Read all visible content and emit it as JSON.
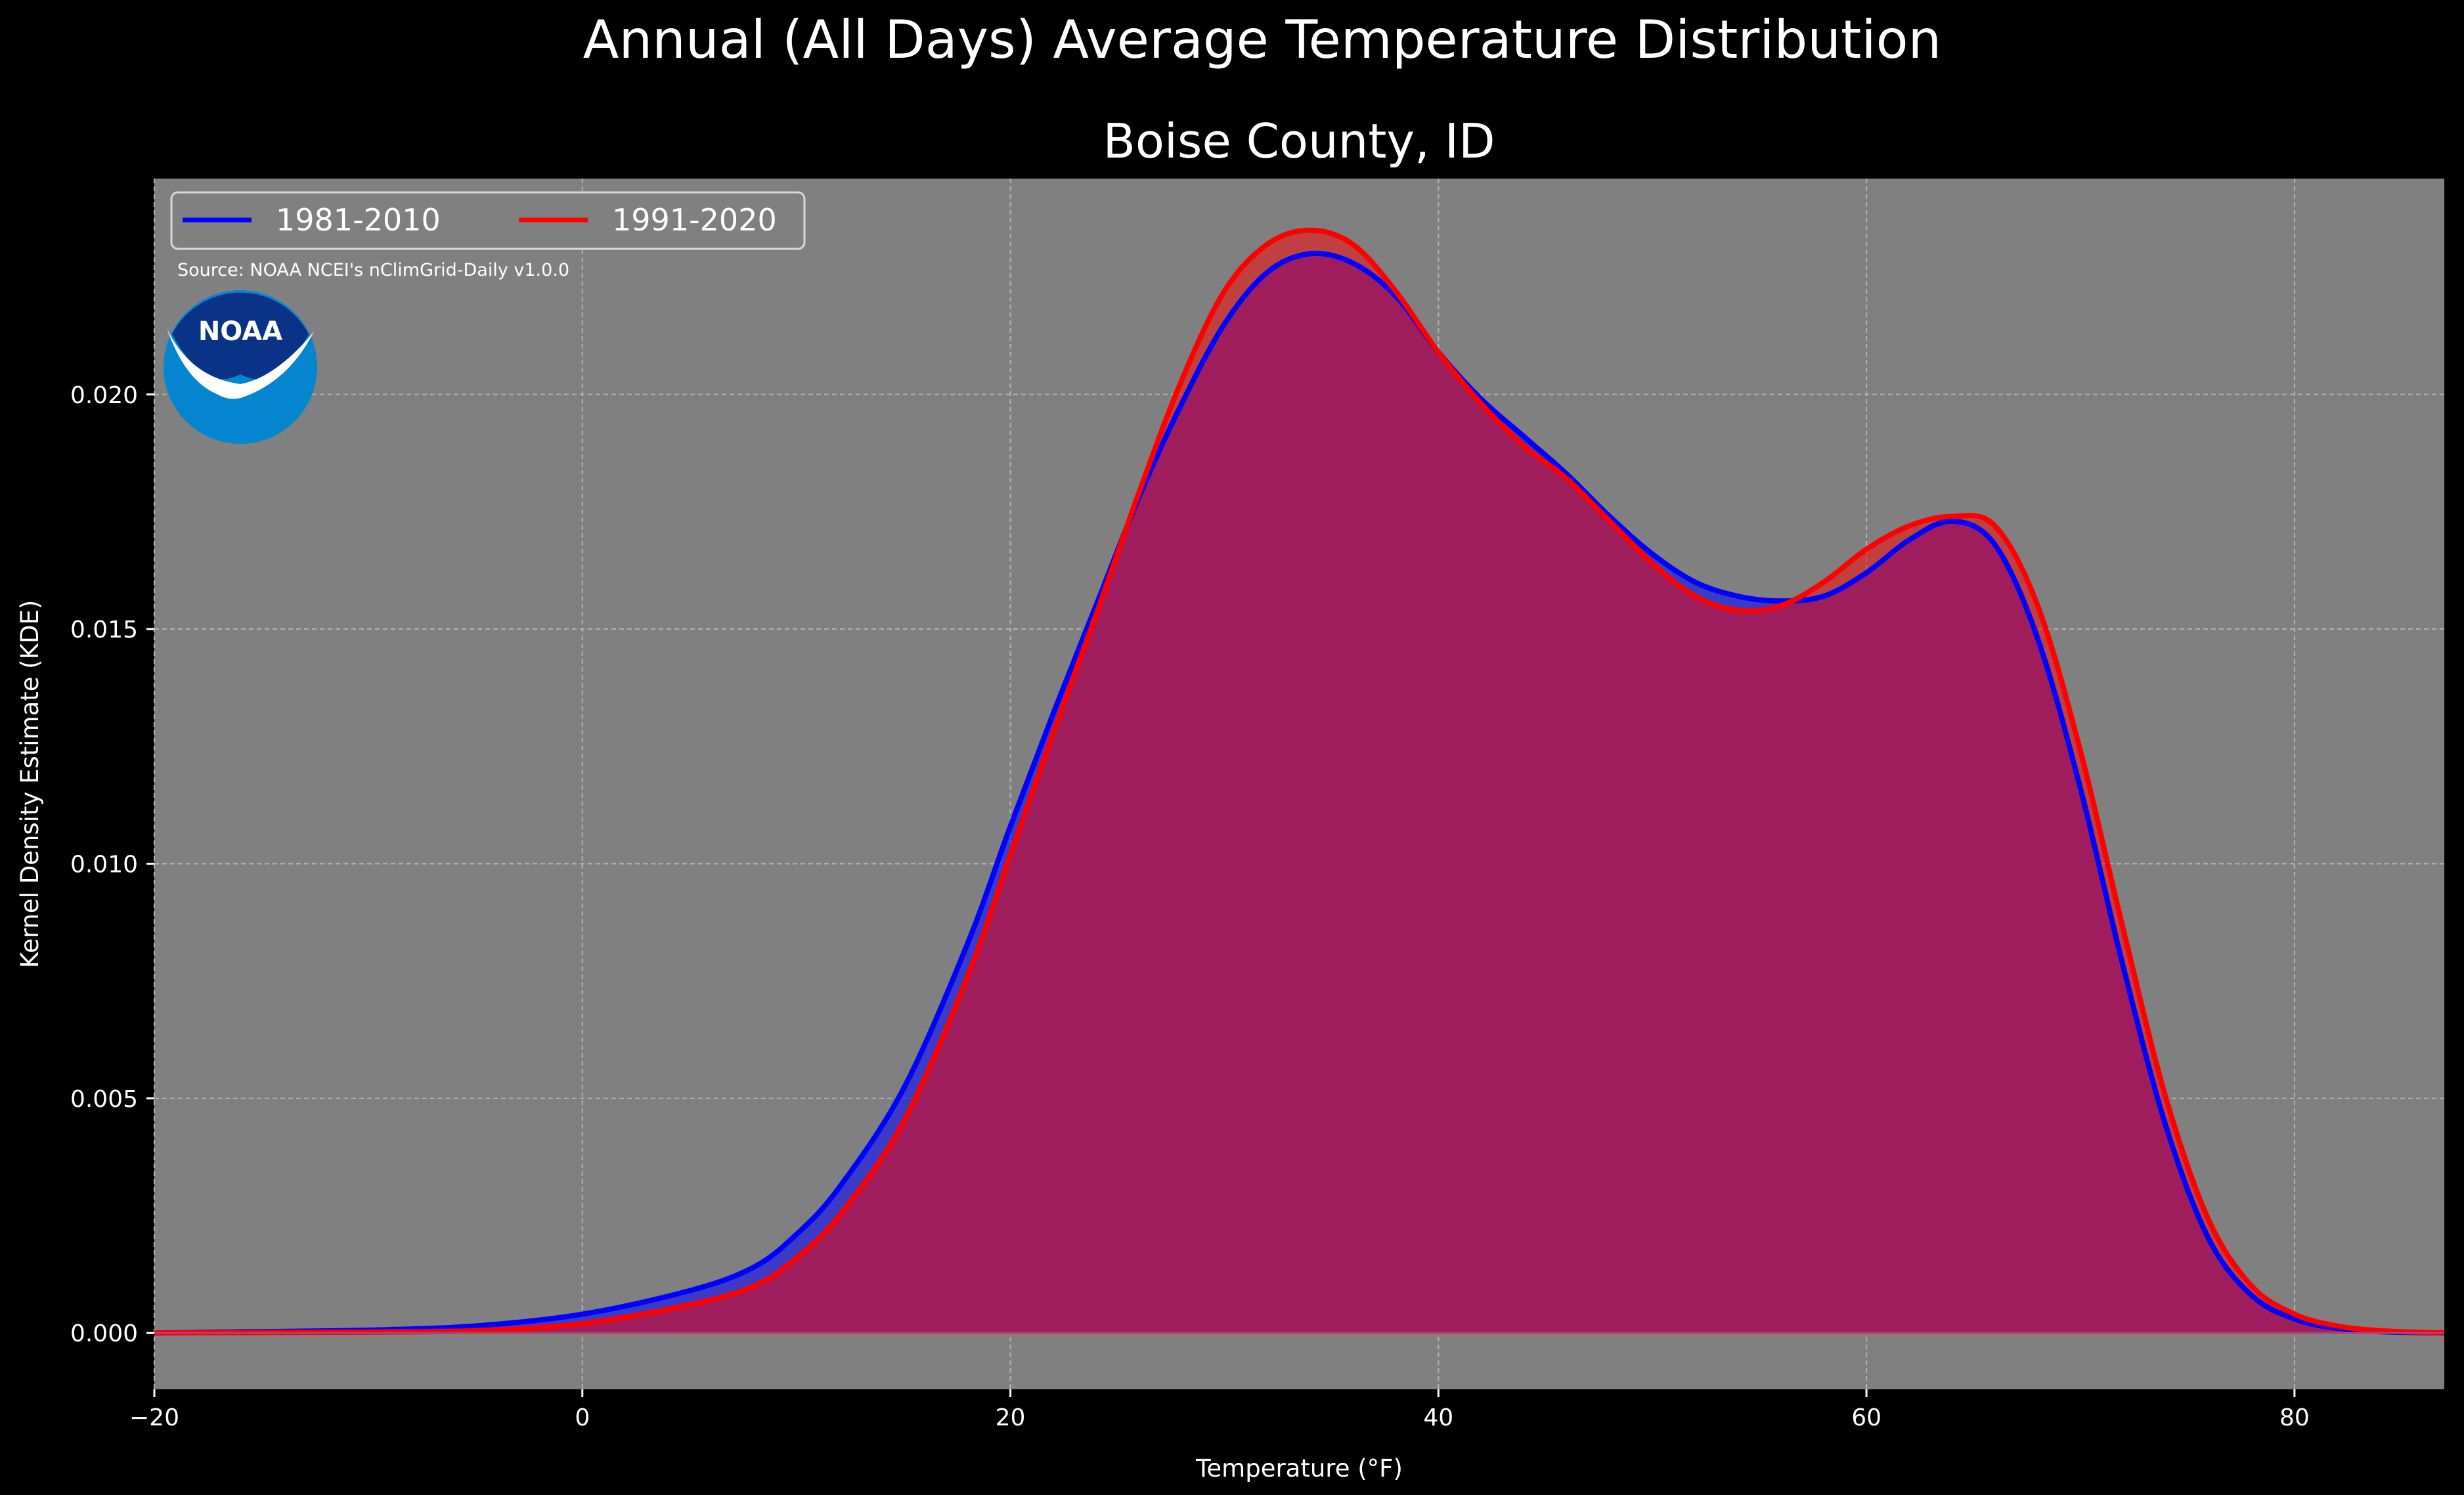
{
  "chart_data": {
    "type": "area",
    "title": "Annual (All Days) Average Temperature Distribution",
    "subtitle": "Boise County, ID",
    "xlabel": "Temperature (°F)",
    "ylabel": "Kernel Density Estimate (KDE)",
    "xlim": [
      -20,
      87
    ],
    "ylim": [
      -0.0012,
      0.0246
    ],
    "x_ticks": [
      -20,
      0,
      20,
      40,
      60,
      80
    ],
    "x_tick_labels": [
      "−20",
      "0",
      "20",
      "40",
      "60",
      "80"
    ],
    "y_ticks": [
      0.0,
      0.005,
      0.01,
      0.015,
      0.02
    ],
    "y_tick_labels": [
      "0.000",
      "0.005",
      "0.010",
      "0.015",
      "0.020"
    ],
    "grid": true,
    "legend_position": "top-left",
    "source": "Source: NOAA NCEI's nClimGrid-Daily v1.0.0",
    "logo_text": "NOAA",
    "colors": {
      "figure_bg": "#000000",
      "axes_bg": "#808080",
      "series_1": "#0000ff",
      "series_2": "#ff0000",
      "overlap_fill": "#a01e5c"
    },
    "series": [
      {
        "name": "1981-2010",
        "color": "#0000ff",
        "x": [
          -20,
          -15,
          -10,
          -5,
          0,
          5,
          8,
          10,
          12,
          15,
          18,
          20,
          22,
          24,
          26,
          28,
          30,
          32,
          34,
          36,
          38,
          40,
          42,
          44,
          46,
          48,
          50,
          52,
          54,
          56,
          58,
          60,
          62,
          64,
          66,
          68,
          70,
          72,
          74,
          76,
          78,
          80,
          82,
          84,
          87
        ],
        "y": [
          0.0,
          3e-05,
          6e-05,
          0.00015,
          0.0004,
          0.0009,
          0.0014,
          0.0021,
          0.0031,
          0.0052,
          0.0083,
          0.0108,
          0.0132,
          0.0155,
          0.0178,
          0.0198,
          0.0215,
          0.0226,
          0.023,
          0.0228,
          0.0221,
          0.0209,
          0.0199,
          0.0191,
          0.0183,
          0.0174,
          0.0166,
          0.016,
          0.0157,
          0.0156,
          0.0157,
          0.0162,
          0.0169,
          0.0173,
          0.0168,
          0.0148,
          0.0116,
          0.0078,
          0.0044,
          0.002,
          0.0008,
          0.0003,
          0.0001,
          3e-05,
          0.0
        ]
      },
      {
        "name": "1991-2020",
        "color": "#ff0000",
        "x": [
          -20,
          -15,
          -10,
          -5,
          0,
          5,
          8,
          10,
          12,
          15,
          18,
          20,
          22,
          24,
          26,
          28,
          30,
          32,
          34,
          36,
          38,
          40,
          42,
          44,
          46,
          48,
          50,
          52,
          54,
          56,
          58,
          60,
          62,
          64,
          66,
          68,
          70,
          72,
          74,
          76,
          78,
          80,
          82,
          84,
          87
        ],
        "y": [
          0.0,
          1e-05,
          2e-05,
          5e-05,
          0.0002,
          0.0006,
          0.001,
          0.0016,
          0.0025,
          0.0045,
          0.0076,
          0.0102,
          0.0128,
          0.0153,
          0.0179,
          0.0203,
          0.0222,
          0.0232,
          0.0235,
          0.0232,
          0.0222,
          0.0209,
          0.0198,
          0.0189,
          0.0182,
          0.0173,
          0.0164,
          0.0157,
          0.0154,
          0.0155,
          0.016,
          0.0167,
          0.0172,
          0.0174,
          0.0172,
          0.0155,
          0.0124,
          0.0086,
          0.005,
          0.0024,
          0.001,
          0.0004,
          0.00015,
          5e-05,
          0.0
        ]
      }
    ]
  }
}
